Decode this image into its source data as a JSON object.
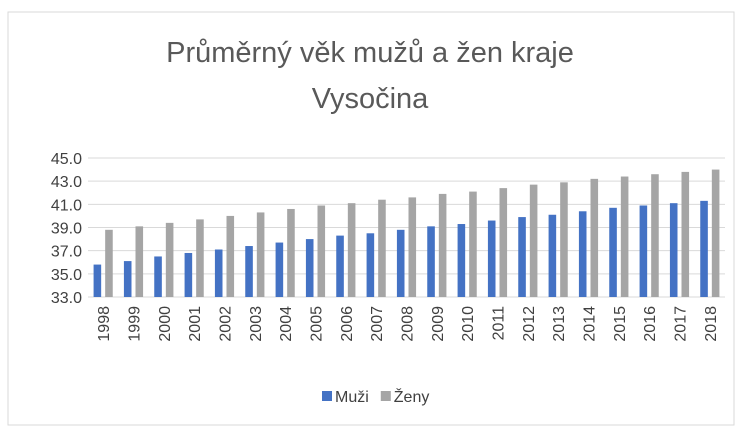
{
  "chart_data": {
    "type": "bar",
    "title": [
      "Průměrný věk mužů a žen kraje",
      "Vysočina"
    ],
    "categories": [
      "1998",
      "1999",
      "2000",
      "2001",
      "2002",
      "2003",
      "2004",
      "2005",
      "2006",
      "2007",
      "2008",
      "2009",
      "2010",
      "2011",
      "2012",
      "2013",
      "2014",
      "2015",
      "2016",
      "2017",
      "2018"
    ],
    "series": [
      {
        "name": "Muži",
        "color": "#4472c4",
        "values": [
          35.8,
          36.1,
          36.5,
          36.8,
          37.1,
          37.4,
          37.7,
          38.0,
          38.3,
          38.5,
          38.8,
          39.1,
          39.3,
          39.6,
          39.9,
          40.1,
          40.4,
          40.7,
          40.9,
          41.1,
          41.3
        ]
      },
      {
        "name": "Ženy",
        "color": "#a5a5a5",
        "values": [
          38.8,
          39.1,
          39.4,
          39.7,
          40.0,
          40.3,
          40.6,
          40.9,
          41.1,
          41.4,
          41.6,
          41.9,
          42.1,
          42.4,
          42.7,
          42.9,
          43.2,
          43.4,
          43.6,
          43.8,
          44.0
        ]
      }
    ],
    "ylim": [
      33,
      45
    ],
    "yticks": [
      {
        "value": 33,
        "label": "33.0"
      },
      {
        "value": 35,
        "label": "35.0"
      },
      {
        "value": 37,
        "label": "37.0"
      },
      {
        "value": 39,
        "label": "39.0"
      },
      {
        "value": 41,
        "label": "41.0"
      },
      {
        "value": 43,
        "label": "43.0"
      },
      {
        "value": 45,
        "label": "45.0"
      }
    ],
    "grid": true,
    "legend": "bottom"
  }
}
